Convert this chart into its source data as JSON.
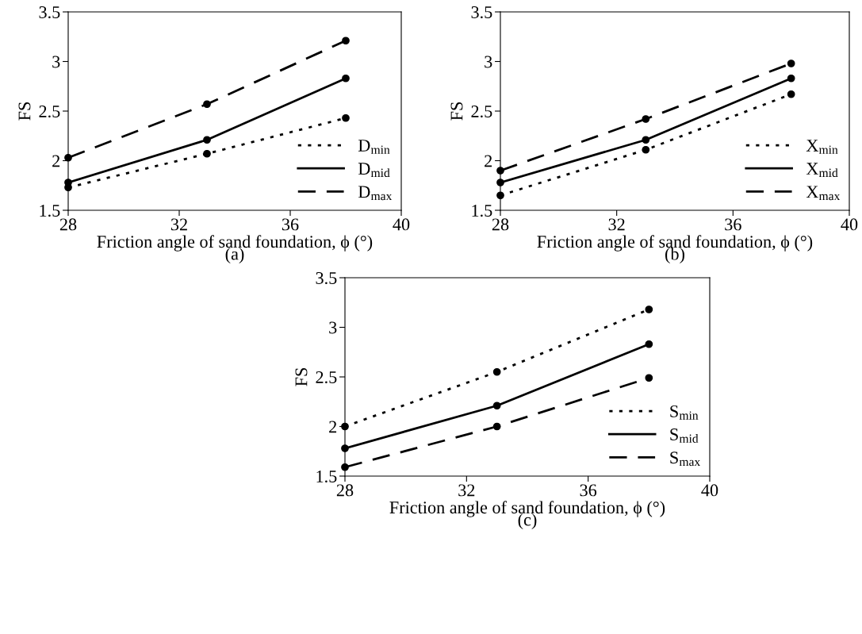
{
  "chart_data": [
    {
      "type": "line",
      "xlabel": "Friction angle of sand foundation, ϕ (°)",
      "ylabel": "FS",
      "annotations": [
        "(a)"
      ],
      "x": [
        28,
        33,
        38
      ],
      "xlim": [
        28,
        40
      ],
      "xticks": [
        28,
        32,
        36,
        40
      ],
      "ylim": [
        1.5,
        3.5
      ],
      "yticks": [
        1.5,
        2,
        2.5,
        3,
        3.5
      ],
      "marker": "circle",
      "legend": "bottom right",
      "grid": false,
      "series": [
        {
          "name": "D$_{min}$",
          "color": "#000000",
          "line_style": "dotted",
          "values": [
            1.73,
            2.07,
            2.43
          ]
        },
        {
          "name": "D$_{mid}$",
          "color": "#000000",
          "line_style": "solid",
          "values": [
            1.78,
            2.21,
            2.83
          ]
        },
        {
          "name": "D$_{max}$",
          "color": "#000000",
          "line_style": "dashed",
          "values": [
            2.03,
            2.57,
            3.21
          ]
        }
      ]
    },
    {
      "type": "line",
      "xlabel": "Friction angle of sand foundation, ϕ (°)",
      "ylabel": "FS",
      "annotations": [
        "(b)"
      ],
      "x": [
        28,
        33,
        38
      ],
      "xlim": [
        28,
        40
      ],
      "xticks": [
        28,
        32,
        36,
        40
      ],
      "ylim": [
        1.5,
        3.5
      ],
      "yticks": [
        1.5,
        2,
        2.5,
        3,
        3.5
      ],
      "marker": "circle",
      "legend": "bottom right",
      "grid": false,
      "series": [
        {
          "name": "X$_{min}$",
          "color": "#000000",
          "line_style": "dotted",
          "values": [
            1.65,
            2.11,
            2.67
          ]
        },
        {
          "name": "X$_{mid}$",
          "color": "#000000",
          "line_style": "solid",
          "values": [
            1.78,
            2.21,
            2.83
          ]
        },
        {
          "name": "X$_{max}$",
          "color": "#000000",
          "line_style": "dashed",
          "values": [
            1.9,
            2.42,
            2.98
          ]
        }
      ]
    },
    {
      "type": "line",
      "xlabel": "Friction angle of sand foundation, ϕ (°)",
      "ylabel": "FS",
      "annotations": [
        "(c)"
      ],
      "x": [
        28,
        33,
        38
      ],
      "xlim": [
        28,
        40
      ],
      "xticks": [
        28,
        32,
        36,
        40
      ],
      "ylim": [
        1.5,
        3.5
      ],
      "yticks": [
        1.5,
        2,
        2.5,
        3,
        3.5
      ],
      "marker": "circle",
      "legend": "bottom right",
      "grid": false,
      "series": [
        {
          "name": "S$_{min}$",
          "color": "#000000",
          "line_style": "dotted",
          "values": [
            2.0,
            2.55,
            3.18
          ]
        },
        {
          "name": "S$_{mid}$",
          "color": "#000000",
          "line_style": "solid",
          "values": [
            1.78,
            2.21,
            2.83
          ]
        },
        {
          "name": "S$_{max}$",
          "color": "#000000",
          "line_style": "dashed",
          "values": [
            1.59,
            2.0,
            2.49
          ]
        }
      ]
    }
  ]
}
